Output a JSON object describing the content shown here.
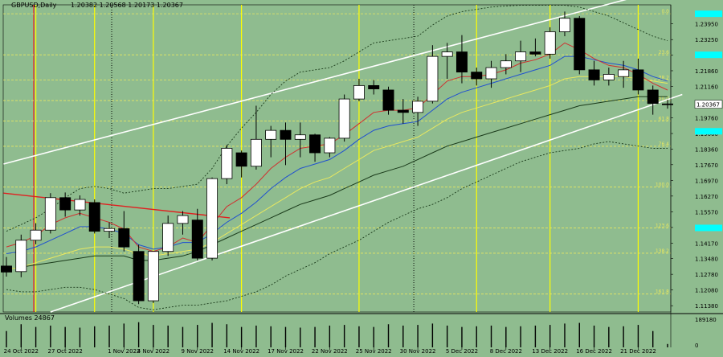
{
  "header": {
    "symbol_label": "GBPUSD,Daily",
    "ohlc_label": "1.20382 1.20568 1.20173 1.20367"
  },
  "volume_label": "Volumes 24867",
  "colors": {
    "background": "#8fbc8f",
    "bull_candle": "#ffffff",
    "bear_candle": "#000000",
    "ma_fast": "#d03030",
    "ma_mid": "#2050d0",
    "ma_slow": "#e8e860",
    "ma_long": "#1a3a1a",
    "channel": "#ffffff",
    "vertical_lines": "#ffff00",
    "price_badge": "#00ffff"
  },
  "chart_data": {
    "type": "candlestick",
    "symbol": "GBPUSD",
    "timeframe": "Daily",
    "ylim": [
      1.111,
      1.248
    ],
    "price_axis_ticks": [
      "1.23950",
      "1.23250",
      "1.22550",
      "1.21860",
      "1.21160",
      "1.20367",
      "1.19760",
      "1.19060",
      "1.18360",
      "1.17670",
      "1.16970",
      "1.16270",
      "1.15570",
      "1.14870",
      "1.14170",
      "1.13480",
      "1.12780",
      "1.12080",
      "1.11380"
    ],
    "current_price": "1.20367",
    "fib_levels": [
      {
        "label": "0.0",
        "value": 1.244
      },
      {
        "label": "23.6",
        "value": 1.2257
      },
      {
        "label": "38.2",
        "value": 1.2145
      },
      {
        "label": "50.0",
        "value": 1.2053
      },
      {
        "label": "61.8",
        "value": 1.1962
      },
      {
        "label": "76.4",
        "value": 1.1849
      },
      {
        "label": "100.0",
        "value": 1.1667
      },
      {
        "label": "123.6",
        "value": 1.1485
      },
      {
        "label": "138.2",
        "value": 1.1372
      },
      {
        "label": "161.8",
        "value": 1.119
      }
    ],
    "date_labels": [
      "24 Oct 2022",
      "27 Oct 2022",
      "1 Nov 2022",
      "4 Nov 2022",
      "9 Nov 2022",
      "14 Nov 2022",
      "17 Nov 2022",
      "22 Nov 2022",
      "25 Nov 2022",
      "30 Nov 2022",
      "5 Dec 2022",
      "8 Dec 2022",
      "13 Dec 2022",
      "16 Dec 2022",
      "21 Dec 2022"
    ],
    "candles": [
      {
        "date": "21 Oct 2022",
        "o": 1.1315,
        "h": 1.1355,
        "l": 1.1268,
        "c": 1.1288
      },
      {
        "date": "24 Oct 2022",
        "o": 1.129,
        "h": 1.1455,
        "l": 1.1265,
        "c": 1.143
      },
      {
        "date": "25 Oct 2022",
        "o": 1.143,
        "h": 1.1506,
        "l": 1.1412,
        "c": 1.1475
      },
      {
        "date": "26 Oct 2022",
        "o": 1.1475,
        "h": 1.164,
        "l": 1.146,
        "c": 1.162
      },
      {
        "date": "27 Oct 2022",
        "o": 1.162,
        "h": 1.1643,
        "l": 1.1535,
        "c": 1.1565
      },
      {
        "date": "28 Oct 2022",
        "o": 1.1565,
        "h": 1.163,
        "l": 1.154,
        "c": 1.1612
      },
      {
        "date": "31 Oct 2022",
        "o": 1.1598,
        "h": 1.1612,
        "l": 1.146,
        "c": 1.147
      },
      {
        "date": "1 Nov 2022",
        "o": 1.147,
        "h": 1.151,
        "l": 1.144,
        "c": 1.1482
      },
      {
        "date": "2 Nov 2022",
        "o": 1.1482,
        "h": 1.156,
        "l": 1.138,
        "c": 1.14
      },
      {
        "date": "3 Nov 2022",
        "o": 1.138,
        "h": 1.141,
        "l": 1.1145,
        "c": 1.116
      },
      {
        "date": "4 Nov 2022",
        "o": 1.116,
        "h": 1.138,
        "l": 1.115,
        "c": 1.138
      },
      {
        "date": "7 Nov 2022",
        "o": 1.138,
        "h": 1.154,
        "l": 1.136,
        "c": 1.1505
      },
      {
        "date": "8 Nov 2022",
        "o": 1.1505,
        "h": 1.156,
        "l": 1.1455,
        "c": 1.154
      },
      {
        "date": "9 Nov 2022",
        "o": 1.152,
        "h": 1.157,
        "l": 1.134,
        "c": 1.135
      },
      {
        "date": "10 Nov 2022",
        "o": 1.135,
        "h": 1.171,
        "l": 1.134,
        "c": 1.1705
      },
      {
        "date": "11 Nov 2022",
        "o": 1.1705,
        "h": 1.1855,
        "l": 1.168,
        "c": 1.184
      },
      {
        "date": "14 Nov 2022",
        "o": 1.182,
        "h": 1.183,
        "l": 1.171,
        "c": 1.176
      },
      {
        "date": "15 Nov 2022",
        "o": 1.176,
        "h": 1.203,
        "l": 1.1745,
        "c": 1.188
      },
      {
        "date": "16 Nov 2022",
        "o": 1.188,
        "h": 1.194,
        "l": 1.18,
        "c": 1.192
      },
      {
        "date": "17 Nov 2022",
        "o": 1.192,
        "h": 1.1955,
        "l": 1.1765,
        "c": 1.188
      },
      {
        "date": "18 Nov 2022",
        "o": 1.188,
        "h": 1.1955,
        "l": 1.18,
        "c": 1.19
      },
      {
        "date": "21 Nov 2022",
        "o": 1.19,
        "h": 1.1905,
        "l": 1.178,
        "c": 1.182
      },
      {
        "date": "22 Nov 2022",
        "o": 1.182,
        "h": 1.189,
        "l": 1.18,
        "c": 1.1885
      },
      {
        "date": "23 Nov 2022",
        "o": 1.1885,
        "h": 1.208,
        "l": 1.187,
        "c": 1.206
      },
      {
        "date": "24 Nov 2022",
        "o": 1.206,
        "h": 1.215,
        "l": 1.205,
        "c": 1.212
      },
      {
        "date": "25 Nov 2022",
        "o": 1.212,
        "h": 1.2145,
        "l": 1.208,
        "c": 1.2105
      },
      {
        "date": "28 Nov 2022",
        "o": 1.21,
        "h": 1.2115,
        "l": 1.199,
        "c": 1.201
      },
      {
        "date": "29 Nov 2022",
        "o": 1.201,
        "h": 1.206,
        "l": 1.195,
        "c": 1.2
      },
      {
        "date": "30 Nov 2022",
        "o": 1.2,
        "h": 1.207,
        "l": 1.194,
        "c": 1.205
      },
      {
        "date": "1 Dec 2022",
        "o": 1.205,
        "h": 1.23,
        "l": 1.204,
        "c": 1.225
      },
      {
        "date": "2 Dec 2022",
        "o": 1.225,
        "h": 1.231,
        "l": 1.215,
        "c": 1.227
      },
      {
        "date": "5 Dec 2022",
        "o": 1.227,
        "h": 1.2345,
        "l": 1.213,
        "c": 1.218
      },
      {
        "date": "6 Dec 2022",
        "o": 1.218,
        "h": 1.22,
        "l": 1.212,
        "c": 1.215
      },
      {
        "date": "7 Dec 2022",
        "o": 1.215,
        "h": 1.223,
        "l": 1.211,
        "c": 1.22
      },
      {
        "date": "8 Dec 2022",
        "o": 1.22,
        "h": 1.226,
        "l": 1.217,
        "c": 1.223
      },
      {
        "date": "9 Dec 2022",
        "o": 1.223,
        "h": 1.232,
        "l": 1.218,
        "c": 1.227
      },
      {
        "date": "12 Dec 2022",
        "o": 1.227,
        "h": 1.233,
        "l": 1.225,
        "c": 1.226
      },
      {
        "date": "13 Dec 2022",
        "o": 1.226,
        "h": 1.238,
        "l": 1.224,
        "c": 1.236
      },
      {
        "date": "14 Dec 2022",
        "o": 1.236,
        "h": 1.245,
        "l": 1.234,
        "c": 1.242
      },
      {
        "date": "15 Dec 2022",
        "o": 1.242,
        "h": 1.243,
        "l": 1.217,
        "c": 1.219
      },
      {
        "date": "16 Dec 2022",
        "o": 1.219,
        "h": 1.223,
        "l": 1.212,
        "c": 1.2145
      },
      {
        "date": "19 Dec 2022",
        "o": 1.2145,
        "h": 1.22,
        "l": 1.212,
        "c": 1.217
      },
      {
        "date": "20 Dec 2022",
        "o": 1.216,
        "h": 1.223,
        "l": 1.211,
        "c": 1.219
      },
      {
        "date": "21 Dec 2022",
        "o": 1.219,
        "h": 1.224,
        "l": 1.208,
        "c": 1.21
      },
      {
        "date": "22 Dec 2022",
        "o": 1.21,
        "h": 1.212,
        "l": 1.199,
        "c": 1.204
      },
      {
        "date": "23 Dec 2022",
        "o": 1.2038,
        "h": 1.2057,
        "l": 1.2017,
        "c": 1.2037
      }
    ],
    "ma_fast": [
      1.14,
      1.142,
      1.145,
      1.15,
      1.153,
      1.155,
      1.153,
      1.151,
      1.148,
      1.14,
      1.138,
      1.14,
      1.144,
      1.142,
      1.15,
      1.158,
      1.162,
      1.168,
      1.175,
      1.18,
      1.184,
      1.185,
      1.186,
      1.19,
      1.195,
      1.2,
      1.201,
      1.201,
      1.202,
      1.208,
      1.214,
      1.216,
      1.216,
      1.217,
      1.219,
      1.222,
      1.2235,
      1.226,
      1.231,
      1.228,
      1.224,
      1.221,
      1.22,
      1.217,
      1.213,
      1.21
    ],
    "ma_mid": [
      1.137,
      1.138,
      1.14,
      1.143,
      1.146,
      1.149,
      1.149,
      1.148,
      1.146,
      1.141,
      1.139,
      1.14,
      1.142,
      1.142,
      1.146,
      1.151,
      1.155,
      1.16,
      1.166,
      1.171,
      1.175,
      1.177,
      1.179,
      1.183,
      1.188,
      1.192,
      1.194,
      1.195,
      1.196,
      1.201,
      1.206,
      1.209,
      1.211,
      1.213,
      1.215,
      1.217,
      1.219,
      1.221,
      1.225,
      1.225,
      1.2235,
      1.222,
      1.221,
      1.219,
      1.216,
      1.214
    ],
    "ma_slow": [
      1.13,
      1.131,
      1.133,
      1.135,
      1.137,
      1.139,
      1.14,
      1.14,
      1.139,
      1.137,
      1.136,
      1.137,
      1.138,
      1.139,
      1.142,
      1.146,
      1.15,
      1.154,
      1.158,
      1.162,
      1.166,
      1.169,
      1.171,
      1.175,
      1.179,
      1.183,
      1.185,
      1.187,
      1.189,
      1.193,
      1.197,
      1.2,
      1.202,
      1.204,
      1.206,
      1.208,
      1.21,
      1.212,
      1.215,
      1.216,
      1.216,
      1.216,
      1.216,
      1.215,
      1.214,
      1.213
    ],
    "ma_long": [
      1.13,
      1.131,
      1.132,
      1.133,
      1.134,
      1.135,
      1.136,
      1.136,
      1.136,
      1.134,
      1.134,
      1.135,
      1.136,
      1.138,
      1.141,
      1.144,
      1.147,
      1.15,
      1.153,
      1.156,
      1.159,
      1.161,
      1.163,
      1.166,
      1.169,
      1.172,
      1.174,
      1.176,
      1.179,
      1.182,
      1.185,
      1.187,
      1.189,
      1.191,
      1.193,
      1.195,
      1.197,
      1.199,
      1.201,
      1.203,
      1.204,
      1.205,
      1.206,
      1.207,
      1.207,
      1.207
    ],
    "bb_upper": [
      1.147,
      1.15,
      1.153,
      1.157,
      1.162,
      1.166,
      1.167,
      1.166,
      1.164,
      1.165,
      1.166,
      1.166,
      1.167,
      1.168,
      1.175,
      1.185,
      1.193,
      1.2,
      1.208,
      1.214,
      1.218,
      1.219,
      1.22,
      1.223,
      1.227,
      1.231,
      1.232,
      1.233,
      1.234,
      1.239,
      1.243,
      1.245,
      1.246,
      1.247,
      1.2475,
      1.2478,
      1.2478,
      1.2478,
      1.2478,
      1.247,
      1.245,
      1.243,
      1.24,
      1.237,
      1.234,
      1.232
    ],
    "bb_lower": [
      1.121,
      1.12,
      1.12,
      1.121,
      1.122,
      1.122,
      1.121,
      1.119,
      1.117,
      1.113,
      1.112,
      1.113,
      1.114,
      1.114,
      1.115,
      1.116,
      1.118,
      1.12,
      1.123,
      1.127,
      1.13,
      1.133,
      1.137,
      1.14,
      1.143,
      1.147,
      1.151,
      1.154,
      1.157,
      1.159,
      1.162,
      1.166,
      1.169,
      1.172,
      1.175,
      1.178,
      1.18,
      1.182,
      1.183,
      1.184,
      1.186,
      1.187,
      1.186,
      1.185,
      1.184,
      1.184
    ],
    "volumes": [
      120000,
      170000,
      150000,
      160000,
      150000,
      145000,
      155000,
      160000,
      175000,
      185000,
      165000,
      160000,
      150000,
      165000,
      180000,
      170000,
      150000,
      160000,
      155000,
      150000,
      145000,
      150000,
      160000,
      165000,
      155000,
      150000,
      170000,
      160000,
      165000,
      175000,
      160000,
      150000,
      155000,
      160000,
      150000,
      155000,
      160000,
      165000,
      175000,
      180000,
      160000,
      150000,
      155000,
      165000,
      120000,
      24867
    ],
    "volume_axis": {
      "max": "189180",
      "zero": "0"
    }
  }
}
